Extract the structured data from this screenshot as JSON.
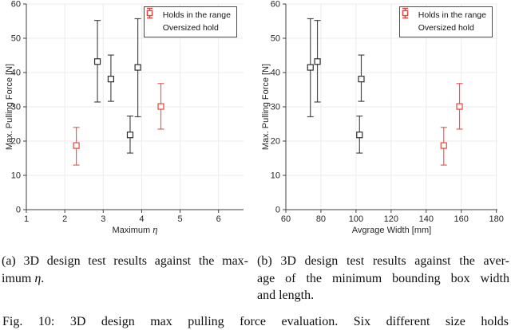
{
  "figure_caption": "Fig. 10: 3D design max pulling force evaluation. Six different size holds",
  "captions": {
    "a": {
      "lines": [
        {
          "tokens": [
            {
              "text": "(a) 3D design test results against the max-"
            }
          ],
          "justify": true
        },
        {
          "tokens": [
            {
              "text": "imum "
            },
            {
              "text": "η",
              "italic": true
            },
            {
              "text": "."
            }
          ],
          "justify": false
        }
      ]
    },
    "b": {
      "lines": [
        {
          "tokens": [
            {
              "text": "(b) 3D design test results against the aver-"
            }
          ],
          "justify": true
        },
        {
          "tokens": [
            {
              "text": "age of the minimum bounding box width"
            }
          ],
          "justify": true
        },
        {
          "tokens": [
            {
              "text": "and length."
            }
          ],
          "justify": false
        }
      ]
    }
  },
  "chart_data": [
    {
      "id": "a",
      "type": "scatter",
      "title": "",
      "xlabel": "Maximum η",
      "ylabel": "Max. Pulling Force [N]",
      "xlim": [
        1,
        6.65
      ],
      "ylim": [
        0,
        60
      ],
      "xticks": [
        1,
        2,
        3,
        4,
        5,
        6
      ],
      "yticks": [
        0,
        10,
        20,
        30,
        40,
        50,
        60
      ],
      "grid": true,
      "legend_position": "top-right",
      "style": {
        "grid_color": "#ebebeb",
        "axis_color": "#3f3f3f",
        "marker_fill": "#ffffff"
      },
      "series": [
        {
          "name": "Holds in the range",
          "color": "#2f2f2f",
          "points": [
            {
              "x": 2.85,
              "y": 43.2,
              "lo": 31.4,
              "hi": 55.2
            },
            {
              "x": 3.2,
              "y": 38.1,
              "lo": 31.6,
              "hi": 45.1
            },
            {
              "x": 3.7,
              "y": 21.8,
              "lo": 16.5,
              "hi": 27.3
            },
            {
              "x": 3.9,
              "y": 41.5,
              "lo": 27.1,
              "hi": 55.7
            }
          ]
        },
        {
          "name": "Oversized hold",
          "color": "#ed4337",
          "points": [
            {
              "x": 2.3,
              "y": 18.7,
              "lo": 13.0,
              "hi": 24.0
            },
            {
              "x": 4.5,
              "y": 30.1,
              "lo": 23.5,
              "hi": 36.8
            }
          ]
        }
      ]
    },
    {
      "id": "b",
      "type": "scatter",
      "title": "",
      "xlabel": "Avgrage Width [mm]",
      "ylabel": "Max. Pulling Force [N]",
      "xlim": [
        60,
        180.6
      ],
      "ylim": [
        0,
        60
      ],
      "xticks": [
        60,
        80,
        100,
        120,
        140,
        160,
        180
      ],
      "yticks": [
        0,
        10,
        20,
        30,
        40,
        50,
        60
      ],
      "grid": true,
      "legend_position": "top-right",
      "style": {
        "grid_color": "#ebebeb",
        "axis_color": "#3f3f3f",
        "marker_fill": "#ffffff"
      },
      "series": [
        {
          "name": "Holds in the range",
          "color": "#2f2f2f",
          "points": [
            {
              "x": 74,
              "y": 41.5,
              "lo": 27.1,
              "hi": 55.7
            },
            {
              "x": 78,
              "y": 43.2,
              "lo": 31.4,
              "hi": 55.2
            },
            {
              "x": 103,
              "y": 38.1,
              "lo": 31.6,
              "hi": 45.1
            },
            {
              "x": 102,
              "y": 21.8,
              "lo": 16.5,
              "hi": 27.3
            }
          ]
        },
        {
          "name": "Oversized hold",
          "color": "#ed4337",
          "points": [
            {
              "x": 150,
              "y": 18.7,
              "lo": 13.0,
              "hi": 24.0
            },
            {
              "x": 159,
              "y": 30.1,
              "lo": 23.5,
              "hi": 36.8
            }
          ]
        }
      ]
    }
  ]
}
